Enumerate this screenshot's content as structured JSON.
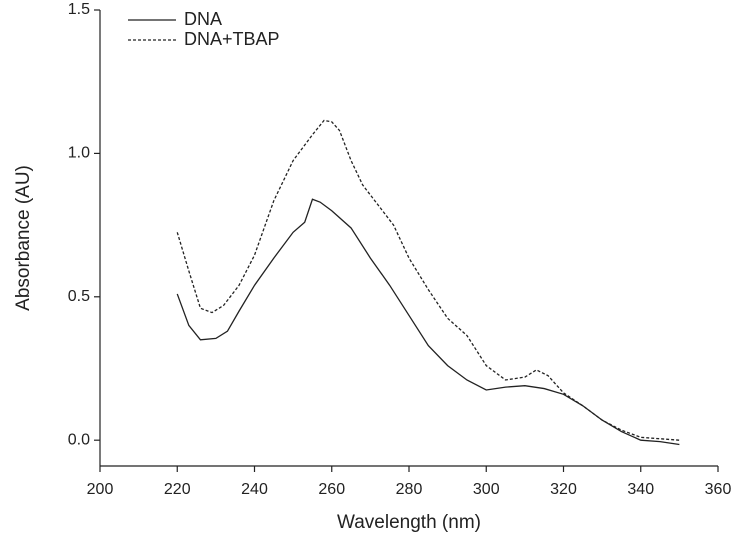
{
  "chart_data": {
    "type": "line",
    "xlabel": "Wavelength (nm)",
    "ylabel": "Absorbance (AU)",
    "xlim": [
      200,
      360
    ],
    "ylim": [
      -0.09,
      1.5
    ],
    "xticks": [
      200,
      220,
      240,
      260,
      280,
      300,
      320,
      340,
      360
    ],
    "yticks": [
      {
        "value": 0,
        "label": "0.0"
      },
      {
        "value": 0.5,
        "label": "0.5"
      },
      {
        "value": 1,
        "label": "1.0"
      },
      {
        "value": 1.5,
        "label": "1.5"
      }
    ],
    "legend": "upper left",
    "series": [
      {
        "name": "DNA",
        "color": "#222222",
        "linestyle": "solid",
        "x": [
          220,
          223,
          226,
          230,
          233,
          236,
          240,
          245,
          250,
          253,
          255,
          257,
          260,
          265,
          270,
          275,
          280,
          285,
          290,
          295,
          300,
          305,
          310,
          315,
          320,
          325,
          330,
          335,
          340,
          345,
          350
        ],
        "values": [
          0.51,
          0.4,
          0.35,
          0.355,
          0.38,
          0.45,
          0.54,
          0.635,
          0.725,
          0.76,
          0.84,
          0.83,
          0.8,
          0.74,
          0.635,
          0.54,
          0.435,
          0.33,
          0.26,
          0.21,
          0.175,
          0.185,
          0.19,
          0.18,
          0.16,
          0.12,
          0.07,
          0.03,
          0.0,
          -0.005,
          -0.015
        ]
      },
      {
        "name": "DNA+TBAP",
        "color": "#222222",
        "linestyle": "dashed",
        "x": [
          220,
          223,
          226,
          229,
          232,
          236,
          240,
          245,
          250,
          255,
          258,
          260,
          262,
          265,
          268,
          272,
          276,
          280,
          285,
          290,
          295,
          300,
          305,
          310,
          313,
          316,
          320,
          325,
          330,
          335,
          340,
          345,
          350
        ],
        "values": [
          0.725,
          0.59,
          0.46,
          0.445,
          0.47,
          0.54,
          0.645,
          0.835,
          0.975,
          1.065,
          1.115,
          1.11,
          1.08,
          0.975,
          0.89,
          0.82,
          0.75,
          0.635,
          0.525,
          0.425,
          0.365,
          0.26,
          0.21,
          0.22,
          0.245,
          0.225,
          0.165,
          0.12,
          0.07,
          0.035,
          0.01,
          0.005,
          0.0
        ]
      }
    ]
  }
}
